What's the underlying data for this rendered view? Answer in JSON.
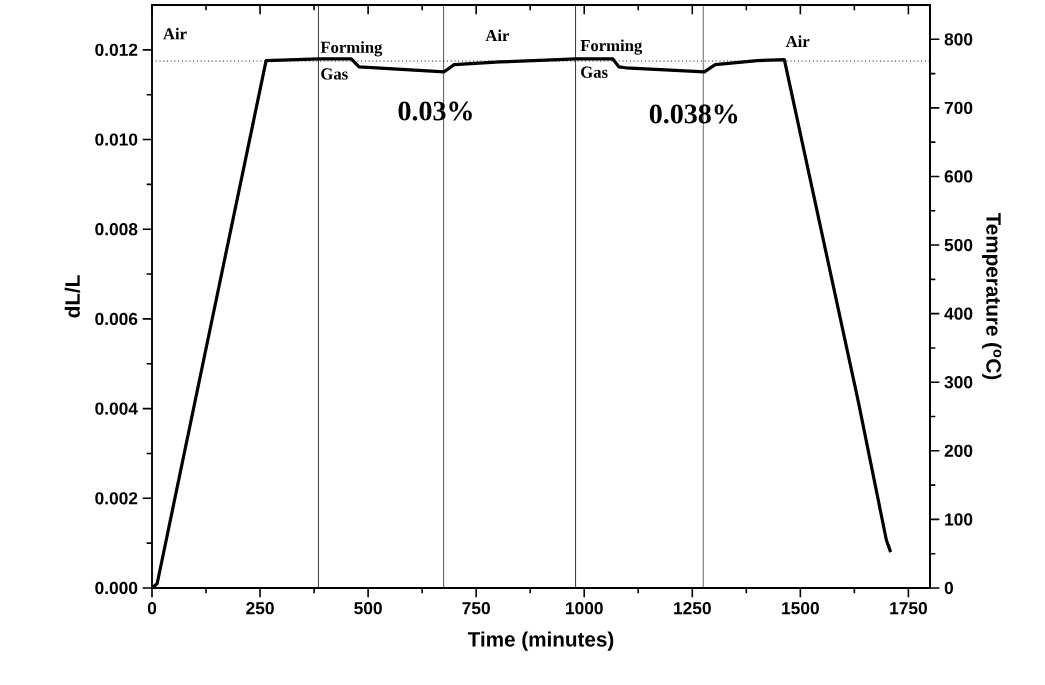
{
  "chart_data": {
    "type": "line",
    "xlabel": "Time (minutes)",
    "ylabel": "dL/L",
    "y2label": "Temperature ($^{o}$C)",
    "x": [
      0,
      12,
      109,
      264,
      387,
      461,
      479,
      676,
      699,
      805,
      940,
      979,
      1066,
      1080,
      1096,
      1278,
      1303,
      1400,
      1463,
      1634,
      1699,
      1709
    ],
    "series": [
      {
        "color": "#000000",
        "values": [
          0,
          0.0001,
          0.0046,
          0.01176,
          0.0118,
          0.0118,
          0.01162,
          0.01151,
          0.01167,
          0.01173,
          0.01178,
          0.0118,
          0.0118,
          0.01162,
          0.0116,
          0.01151,
          0.01167,
          0.01176,
          0.01178,
          0.00416,
          0.00107,
          0.0008
        ]
      }
    ],
    "xlim": [
      0,
      1800
    ],
    "xticks": [
      0,
      250,
      500,
      750,
      1000,
      1250,
      1500,
      1750
    ],
    "ylim": [
      0,
      0.013
    ],
    "yticks": [
      {
        "value": 0,
        "label": "0.000"
      },
      {
        "value": 0.002,
        "label": "0.002"
      },
      {
        "value": 0.004,
        "label": "0.004"
      },
      {
        "value": 0.006,
        "label": "0.006"
      },
      {
        "value": 0.008,
        "label": "0.008"
      },
      {
        "value": 0.01,
        "label": "0.010"
      },
      {
        "value": 0.012,
        "label": "0.012"
      }
    ],
    "y2lim": [
      0,
      850
    ],
    "y2ticks": [
      0,
      100,
      200,
      300,
      400,
      500,
      600,
      700,
      800
    ],
    "ref_lines": [
      {
        "axis": "x",
        "value": 385,
        "color": "#000000"
      },
      {
        "axis": "x",
        "value": 675,
        "color": "#000000"
      },
      {
        "axis": "x",
        "value": 980,
        "color": "#000000"
      },
      {
        "axis": "x",
        "value": 1275,
        "color": "#000000"
      },
      {
        "axis": "y",
        "value": 0.01175,
        "color": "#000000",
        "line_style": "dotted"
      }
    ],
    "annotations": [
      "Air",
      "Forming Gas",
      "Air",
      "Forming Gas",
      "Air",
      "0.03%",
      "0.038%"
    ],
    "line_style": "solid",
    "marker": "none",
    "grid": false
  }
}
